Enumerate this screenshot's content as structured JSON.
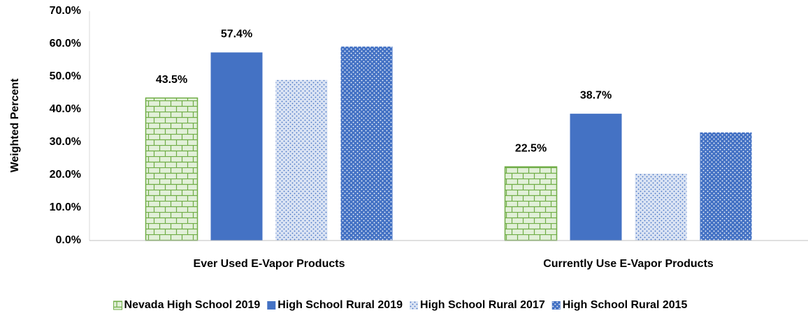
{
  "chart_data": {
    "type": "bar",
    "y_axis_label": "Weighted Percent",
    "categories": [
      "Ever Used E-Vapor Products",
      "Currently Use E-Vapor Products"
    ],
    "series": [
      {
        "name": "Nevada High School 2019",
        "color": "#70ad47",
        "pattern": "brick",
        "values": [
          43.5,
          22.5
        ],
        "value_labels": [
          "43.5%",
          "22.5%"
        ]
      },
      {
        "name": "High School Rural 2019",
        "color": "#4472c4",
        "pattern": "solid",
        "values": [
          57.4,
          38.7
        ],
        "value_labels": [
          "57.4%",
          "38.7%"
        ]
      },
      {
        "name": "High School Rural 2017",
        "color": "#4472c4",
        "pattern": "light-dots",
        "values": [
          49.0,
          20.4
        ]
      },
      {
        "name": "High School Rural 2015",
        "color": "#4472c4",
        "pattern": "dark-dots",
        "values": [
          59.2,
          33.0
        ]
      }
    ],
    "ylim": [
      0,
      70
    ],
    "yticks": [
      {
        "value": 0,
        "label": "0.0%"
      },
      {
        "value": 10,
        "label": "10.0%"
      },
      {
        "value": 20,
        "label": "20.0%"
      },
      {
        "value": 30,
        "label": "30.0%"
      },
      {
        "value": 40,
        "label": "40.0%"
      },
      {
        "value": 50,
        "label": "50.0%"
      },
      {
        "value": 60,
        "label": "60.0%"
      },
      {
        "value": 70,
        "label": "70.0%"
      }
    ],
    "legend": "bottom"
  }
}
